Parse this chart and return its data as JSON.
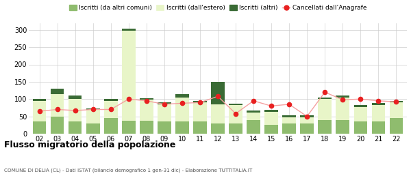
{
  "years": [
    "02",
    "03",
    "04",
    "05",
    "06",
    "07",
    "08",
    "09",
    "10",
    "11",
    "12",
    "13",
    "14",
    "15",
    "16",
    "17",
    "18",
    "19",
    "20",
    "21",
    "22"
  ],
  "iscritti_altri_comuni": [
    35,
    50,
    35,
    30,
    45,
    38,
    38,
    35,
    35,
    35,
    30,
    30,
    40,
    25,
    30,
    30,
    40,
    40,
    35,
    35,
    45
  ],
  "iscritti_estero": [
    60,
    65,
    65,
    38,
    50,
    260,
    60,
    50,
    70,
    55,
    55,
    52,
    22,
    38,
    18,
    18,
    60,
    65,
    42,
    48,
    45
  ],
  "iscritti_altri": [
    5,
    15,
    10,
    5,
    5,
    5,
    5,
    5,
    10,
    5,
    65,
    5,
    5,
    5,
    5,
    5,
    5,
    5,
    5,
    5,
    5
  ],
  "cancellati": [
    65,
    70,
    67,
    70,
    70,
    100,
    95,
    85,
    88,
    90,
    108,
    58,
    95,
    80,
    85,
    50,
    120,
    98,
    100,
    95,
    92
  ],
  "color_altri_comuni": "#8fbc6e",
  "color_estero": "#e8f5c8",
  "color_altri": "#3a6b35",
  "color_cancellati": "#e82020",
  "color_line": "#f5a0a0",
  "title": "Flusso migratorio della popolazione",
  "subtitle": "COMUNE DI DELIA (CL) - Dati ISTAT (bilancio demografico 1 gen-31 dic) - Elaborazione TUTTITALIA.IT",
  "legend_labels": [
    "Iscritti (da altri comuni)",
    "Iscritti (dall'estero)",
    "Iscritti (altri)",
    "Cancellati dall’Anagrafe"
  ],
  "ylim": [
    0,
    320
  ],
  "yticks": [
    0,
    50,
    100,
    150,
    200,
    250,
    300
  ],
  "fig_width": 6.0,
  "fig_height": 2.8,
  "dpi": 100
}
